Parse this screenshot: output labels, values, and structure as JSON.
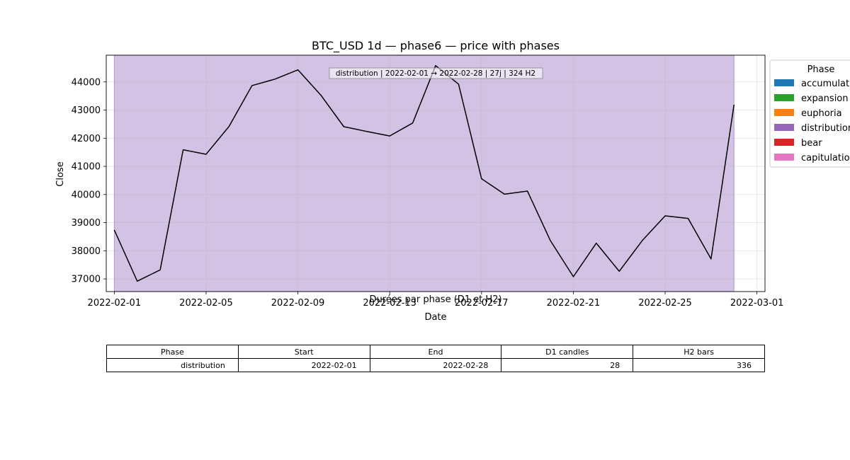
{
  "chart_data": {
    "type": "line",
    "title": "BTC_USD 1d — phase6 — price with phases",
    "xlabel": "Date",
    "ylabel": "Close",
    "x_tick_labels": [
      "2022-02-01",
      "2022-02-05",
      "2022-02-09",
      "2022-02-13",
      "2022-02-17",
      "2022-02-21",
      "2022-02-25",
      "2022-03-01"
    ],
    "x_ticks": [
      "2022-02-01",
      "2022-02-05",
      "2022-02-09",
      "2022-02-13",
      "2022-02-17",
      "2022-02-21",
      "2022-02-25",
      "2022-03-01"
    ],
    "y_ticks": [
      37000,
      38000,
      39000,
      40000,
      41000,
      42000,
      43000,
      44000
    ],
    "xlim": [
      "2022-01-31",
      "2022-03-01"
    ],
    "ylim": [
      36550,
      44950
    ],
    "grid": true,
    "series": [
      {
        "color": "#000000",
        "x": [
          "2022-02-01",
          "2022-02-02",
          "2022-02-03",
          "2022-02-04",
          "2022-02-05",
          "2022-02-06",
          "2022-02-07",
          "2022-02-08",
          "2022-02-09",
          "2022-02-10",
          "2022-02-11",
          "2022-02-12",
          "2022-02-13",
          "2022-02-14",
          "2022-02-15",
          "2022-02-16",
          "2022-02-17",
          "2022-02-18",
          "2022-02-19",
          "2022-02-20",
          "2022-02-21",
          "2022-02-22",
          "2022-02-23",
          "2022-02-24",
          "2022-02-25",
          "2022-02-26",
          "2022-02-27",
          "2022-02-28"
        ],
        "values": [
          38740,
          36920,
          37320,
          41590,
          41430,
          42420,
          43870,
          44100,
          44430,
          43530,
          42410,
          42240,
          42080,
          42540,
          44580,
          43920,
          40560,
          40010,
          40120,
          38360,
          37080,
          38270,
          37270,
          38360,
          39240,
          39150,
          37710,
          43190
        ]
      }
    ],
    "phase_spans": [
      {
        "phase": "distribution",
        "start": "2022-02-01",
        "end": "2022-02-28",
        "color": "#9467bd",
        "alpha": 0.4
      }
    ],
    "annotation": "distribution | 2022-02-01 → 2022-02-28 | 27j | 324 H2",
    "legend": {
      "title": "Phase",
      "placement": "outside-right",
      "entries": [
        {
          "label": "accumulation",
          "color": "#1f77b4"
        },
        {
          "label": "expansion",
          "color": "#2ca02c"
        },
        {
          "label": "euphoria",
          "color": "#ff7f0e"
        },
        {
          "label": "distribution",
          "color": "#9467bd"
        },
        {
          "label": "bear",
          "color": "#d62728"
        },
        {
          "label": "capitulation",
          "color": "#e377c2"
        }
      ]
    }
  },
  "table": {
    "title": "Durées par phase (D1 et H2)",
    "headers": [
      "Phase",
      "Start",
      "End",
      "D1 candles",
      "H2 bars"
    ],
    "rows": [
      [
        "distribution",
        "2022-02-01",
        "2022-02-28",
        "28",
        "336"
      ]
    ]
  }
}
